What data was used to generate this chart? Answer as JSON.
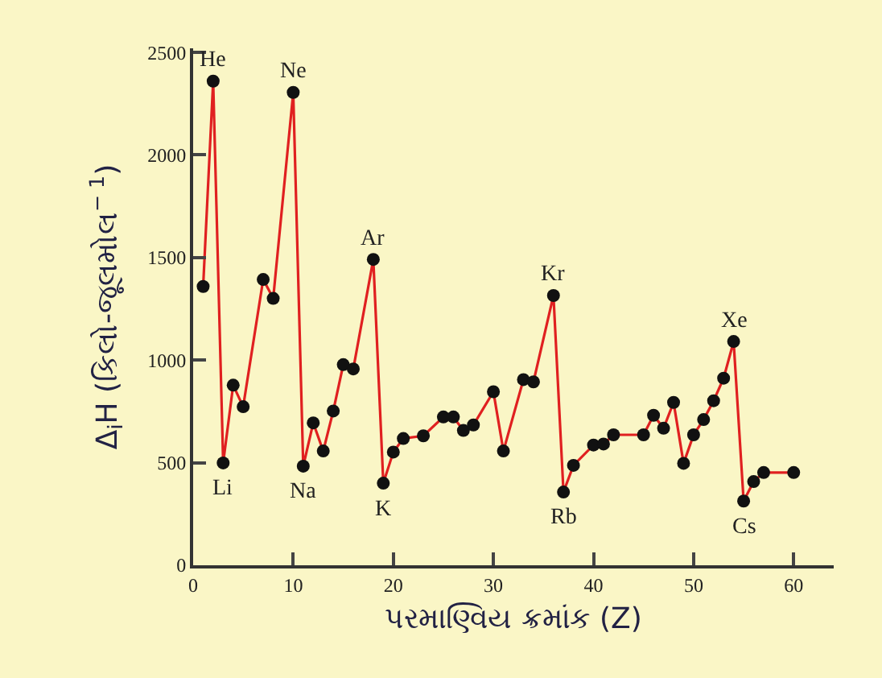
{
  "chart_data": {
    "type": "line",
    "xlabel": "પરમાણ્વિય ક્રમાંક (Z)",
    "ylabel": "Δ$_{i}$H (કિલો-જૂલમોલ$^{− 1}$)",
    "x": [
      1,
      2,
      3,
      4,
      5,
      7,
      8,
      10,
      11,
      12,
      13,
      14,
      15,
      16,
      18,
      19,
      20,
      21,
      23,
      25,
      26,
      27,
      28,
      30,
      31,
      33,
      34,
      36,
      37,
      38,
      40,
      41,
      42,
      45,
      46,
      47,
      48,
      49,
      50,
      51,
      52,
      53,
      54,
      55,
      56,
      57,
      60
    ],
    "series": [
      {
        "color": "#e02020",
        "values": [
          1359,
          2360,
          499,
          878,
          773,
          1393,
          1301,
          2305,
          483,
          694,
          557,
          752,
          978,
          957,
          1491,
          400,
          552,
          618,
          631,
          723,
          723,
          657,
          684,
          846,
          557,
          905,
          894,
          1315,
          357,
          487,
          586,
          591,
          636,
          636,
          731,
          668,
          794,
          497,
          636,
          710,
          802,
          912,
          1091,
          313,
          408,
          452,
          452
        ]
      }
    ],
    "marker": "circle",
    "line_style": "solid",
    "grid": false,
    "xlim": [
      0,
      64
    ],
    "xticks": [
      0,
      10,
      20,
      30,
      40,
      50,
      60
    ],
    "ylim": [
      0,
      2520
    ],
    "yticks": [
      0,
      500,
      1000,
      1500,
      2000,
      2500
    ],
    "annotations": [
      {
        "text": "He",
        "x": 2,
        "y": 2360
      },
      {
        "text": "Li",
        "x": 3,
        "y": 499
      },
      {
        "text": "Ne",
        "x": 10,
        "y": 2305
      },
      {
        "text": "Na",
        "x": 11,
        "y": 483
      },
      {
        "text": "Ar",
        "x": 18,
        "y": 1491
      },
      {
        "text": "K",
        "x": 19,
        "y": 400
      },
      {
        "text": "Kr",
        "x": 36,
        "y": 1315
      },
      {
        "text": "Rb",
        "x": 37,
        "y": 357
      },
      {
        "text": "Xe",
        "x": 54,
        "y": 1091
      },
      {
        "text": "Cs",
        "x": 55,
        "y": 313
      }
    ]
  }
}
